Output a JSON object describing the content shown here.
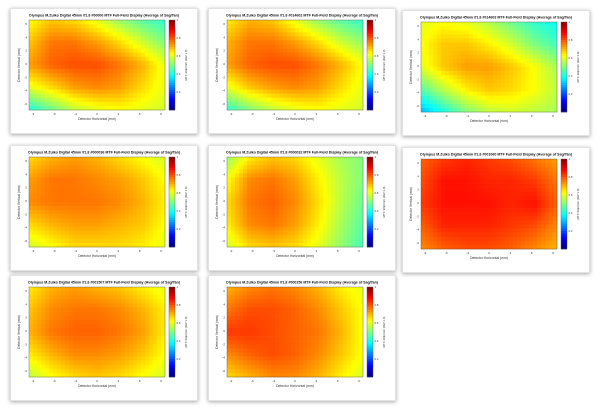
{
  "common": {
    "xlabel": "Detector Horizontal (mm)",
    "ylabel": "Detector Vertical (mm)",
    "colorbar_label": "MTF 30lp/mm (Ref 1.0)",
    "x_ticks": [
      -9,
      -6,
      -3,
      0,
      3,
      6,
      9
    ],
    "y_ticks": [
      6,
      4,
      2,
      0,
      -2,
      -4,
      -6
    ],
    "colorbar_ticks": [
      0.2,
      0.4,
      0.6,
      0.8,
      1
    ],
    "zlim": [
      0,
      1
    ]
  },
  "chart_data": [
    {
      "type": "heatmap",
      "title": "Olympus M.Zuiko Digital 45mm f/1.8 #00000 MTF Full-Field Display (Average of Sag/Tan)",
      "z": [
        [
          0.62,
          0.68,
          0.66,
          0.6,
          0.52,
          0.46,
          0.42
        ],
        [
          0.68,
          0.76,
          0.76,
          0.72,
          0.66,
          0.58,
          0.5
        ],
        [
          0.72,
          0.78,
          0.8,
          0.8,
          0.76,
          0.7,
          0.6
        ],
        [
          0.6,
          0.66,
          0.72,
          0.74,
          0.72,
          0.66,
          0.6
        ],
        [
          0.4,
          0.48,
          0.56,
          0.6,
          0.62,
          0.6,
          0.58
        ]
      ]
    },
    {
      "type": "heatmap",
      "title": "Olympus M.Zuiko Digital 45mm f/1.8 #014602 MTF Full-Field Display (Average of Sag/Tan)",
      "z": [
        [
          0.64,
          0.7,
          0.68,
          0.6,
          0.52,
          0.46,
          0.42
        ],
        [
          0.7,
          0.76,
          0.76,
          0.72,
          0.66,
          0.58,
          0.52
        ],
        [
          0.72,
          0.78,
          0.8,
          0.8,
          0.76,
          0.7,
          0.62
        ],
        [
          0.6,
          0.68,
          0.72,
          0.74,
          0.72,
          0.66,
          0.6
        ],
        [
          0.42,
          0.5,
          0.56,
          0.6,
          0.62,
          0.6,
          0.58
        ]
      ]
    },
    {
      "type": "heatmap",
      "title": "Olympus M.Zuiko Digital 45mm f/1.8 #014603 MTF Full-Field Display (Average of Sag/Tan)",
      "z": [
        [
          0.6,
          0.62,
          0.6,
          0.55,
          0.48,
          0.42,
          0.38
        ],
        [
          0.62,
          0.68,
          0.68,
          0.64,
          0.58,
          0.5,
          0.44
        ],
        [
          0.6,
          0.68,
          0.72,
          0.72,
          0.68,
          0.62,
          0.54
        ],
        [
          0.46,
          0.56,
          0.64,
          0.68,
          0.66,
          0.62,
          0.56
        ],
        [
          0.3,
          0.4,
          0.5,
          0.56,
          0.58,
          0.56,
          0.54
        ]
      ]
    },
    {
      "type": "heatmap",
      "title": "Olympus M.Zuiko Digital 45mm f/1.8 #000036 MTF Full-Field Display (Average of Sag/Tan)",
      "z": [
        [
          0.66,
          0.7,
          0.72,
          0.7,
          0.66,
          0.62,
          0.58
        ],
        [
          0.72,
          0.76,
          0.76,
          0.74,
          0.72,
          0.68,
          0.62
        ],
        [
          0.74,
          0.76,
          0.76,
          0.76,
          0.74,
          0.7,
          0.64
        ],
        [
          0.66,
          0.7,
          0.72,
          0.72,
          0.7,
          0.68,
          0.62
        ],
        [
          0.58,
          0.62,
          0.66,
          0.66,
          0.66,
          0.64,
          0.6
        ]
      ]
    },
    {
      "type": "heatmap",
      "title": "Olympus M.Zuiko Digital 45mm f/1.8 #000032 MTF Full-Field Display (Average of Sag/Tan)",
      "z": [
        [
          0.52,
          0.64,
          0.68,
          0.66,
          0.6,
          0.54,
          0.5
        ],
        [
          0.62,
          0.74,
          0.76,
          0.72,
          0.64,
          0.56,
          0.5
        ],
        [
          0.66,
          0.76,
          0.78,
          0.74,
          0.66,
          0.56,
          0.48
        ],
        [
          0.64,
          0.74,
          0.76,
          0.72,
          0.64,
          0.54,
          0.46
        ],
        [
          0.58,
          0.66,
          0.68,
          0.66,
          0.6,
          0.52,
          0.44
        ]
      ]
    },
    {
      "type": "heatmap",
      "title": "Olympus M.Zuiko Digital 45mm f/1.8 #001060 MTF Full-Field Display (Average of Sag/Tan)",
      "z": [
        [
          0.78,
          0.82,
          0.84,
          0.82,
          0.8,
          0.76,
          0.72
        ],
        [
          0.8,
          0.86,
          0.86,
          0.84,
          0.84,
          0.82,
          0.76
        ],
        [
          0.82,
          0.86,
          0.86,
          0.86,
          0.84,
          0.86,
          0.78
        ],
        [
          0.78,
          0.84,
          0.84,
          0.84,
          0.82,
          0.8,
          0.74
        ],
        [
          0.74,
          0.78,
          0.8,
          0.8,
          0.78,
          0.74,
          0.7
        ]
      ]
    },
    {
      "type": "heatmap",
      "title": "Olympus M.Zuiko Digital 45mm f/1.8 #001507 MTF Full-Field Display (Average of Sag/Tan)",
      "z": [
        [
          0.64,
          0.7,
          0.72,
          0.7,
          0.68,
          0.64,
          0.6
        ],
        [
          0.68,
          0.74,
          0.76,
          0.76,
          0.74,
          0.7,
          0.64
        ],
        [
          0.7,
          0.76,
          0.78,
          0.78,
          0.76,
          0.72,
          0.64
        ],
        [
          0.64,
          0.7,
          0.74,
          0.74,
          0.72,
          0.68,
          0.62
        ],
        [
          0.56,
          0.62,
          0.66,
          0.68,
          0.66,
          0.62,
          0.58
        ]
      ]
    },
    {
      "type": "heatmap",
      "title": "Olympus M.Zuiko Digital 45mm f/1.8 #000156 MTF Full-Field Display (Average of Sag/Tan)",
      "z": [
        [
          0.7,
          0.74,
          0.76,
          0.74,
          0.7,
          0.64,
          0.6
        ],
        [
          0.76,
          0.8,
          0.8,
          0.78,
          0.74,
          0.68,
          0.62
        ],
        [
          0.82,
          0.82,
          0.8,
          0.78,
          0.76,
          0.7,
          0.62
        ],
        [
          0.74,
          0.78,
          0.8,
          0.78,
          0.74,
          0.68,
          0.62
        ],
        [
          0.66,
          0.7,
          0.74,
          0.74,
          0.7,
          0.64,
          0.58
        ]
      ]
    }
  ]
}
